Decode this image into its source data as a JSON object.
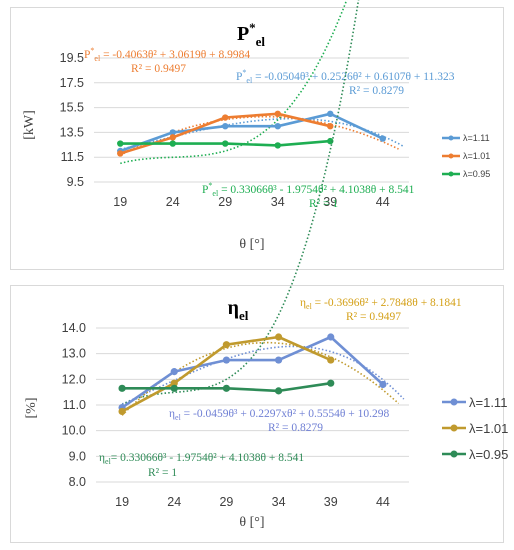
{
  "chart_data": [
    {
      "type": "line",
      "title": "P",
      "title_sup": "*",
      "title_sub": "el",
      "xlabel": "θ [°]",
      "ylabel": "[kW]",
      "categories": [
        "19",
        "24",
        "29",
        "34",
        "39",
        "44"
      ],
      "ylim": [
        9.5,
        19.5
      ],
      "yticks": [
        "19.5",
        "17.5",
        "15.5",
        "13.5",
        "11.5",
        "9.5"
      ],
      "grid": true,
      "legend_position": "right",
      "series": [
        {
          "name": "λ=1.11",
          "color": "#5B9BD5",
          "values": [
            12.0,
            13.5,
            14.0,
            14.0,
            15.0,
            13.0
          ]
        },
        {
          "name": "λ=1.01",
          "color": "#ED7D31",
          "values": [
            11.8,
            13.1,
            14.7,
            15.0,
            14.0,
            null
          ]
        },
        {
          "name": "λ=0.95",
          "color": "#1EAE52",
          "values": [
            12.6,
            12.6,
            12.6,
            12.45,
            12.8,
            null
          ]
        }
      ],
      "trendlines": [
        {
          "series": 0,
          "coef": [
            -0.0504,
            0.2526,
            0.6107,
            11.323
          ],
          "color": "#5B9BD5"
        },
        {
          "series": 1,
          "coef": [
            0,
            -0.4063,
            3.0619,
            8.9984
          ],
          "color": "#ED7D31"
        },
        {
          "series": 2,
          "coef": [
            0.33066,
            -1.9754,
            4.1038,
            8.541
          ],
          "color": "#1EAE52"
        }
      ],
      "equations": [
        {
          "pre": "P",
          "sup": "*",
          "sub": "el",
          "text": " = -0.4063θ² + 3.0619θ + 8.9984",
          "r2": "R² = 0.9497",
          "color": "#ED7D31"
        },
        {
          "pre": "P",
          "sup": "*",
          "sub": "el",
          "text": " = -0.0504θ³ + 0.2526θ² + 0.6107θ + 11.323",
          "r2": "R² = 0.8279",
          "color": "#5B9BD5"
        },
        {
          "pre": "P",
          "sup": "*",
          "sub": "el",
          "text": " = 0.33066θ³ - 1.9754θ² + 4.1038θ + 8.541",
          "r2": "R² = 1",
          "color": "#1EAE52"
        }
      ]
    },
    {
      "type": "line",
      "title": "η",
      "title_sub": "el",
      "xlabel": "θ [°]",
      "ylabel": "[%]",
      "categories": [
        "19",
        "24",
        "29",
        "34",
        "39",
        "44"
      ],
      "ylim": [
        8.0,
        14.0
      ],
      "yticks": [
        "14.0",
        "13.0",
        "12.0",
        "11.0",
        "10.0",
        "9.0",
        "8.0"
      ],
      "grid": true,
      "legend_position": "right",
      "series": [
        {
          "name": "λ=1.11",
          "color": "#6F8FD4",
          "values": [
            10.9,
            12.3,
            12.75,
            12.75,
            13.65,
            11.8
          ]
        },
        {
          "name": "λ=1.01",
          "color": "#C09A2E",
          "values": [
            10.75,
            11.85,
            13.35,
            13.65,
            12.75,
            null
          ]
        },
        {
          "name": "λ=0.95",
          "color": "#2E8B57",
          "values": [
            11.65,
            11.65,
            11.65,
            11.55,
            11.85,
            null
          ]
        }
      ],
      "trendlines": [
        {
          "series": 0,
          "coef": [
            -0.0459,
            0.2297,
            0.5554,
            10.298
          ],
          "color": "#6F8FD4"
        },
        {
          "series": 1,
          "coef": [
            0,
            -0.3696,
            2.7848,
            8.1841
          ],
          "color": "#C09A2E"
        },
        {
          "series": 2,
          "coef": [
            0.33066,
            -1.9754,
            4.1038,
            8.541
          ],
          "color": "#2E8B57"
        }
      ],
      "equations": [
        {
          "pre": "η",
          "sup": "",
          "sub": "el",
          "text": " = -0.3696θ² + 2.7848θ + 8.1841",
          "r2": "R² = 0.9497",
          "color": "#D4A017"
        },
        {
          "pre": "η",
          "sup": "",
          "sub": "el",
          "text": " = -0.0459θ³ + 0.2297xθ² + 0.5554θ + 10.298",
          "r2": "R² = 0.8279",
          "color": "#6F7FD4"
        },
        {
          "pre": "η",
          "sup": "",
          "sub": "el",
          "text": "= 0.33066θ³ - 1.9754θ² + 4.1038θ + 8.541",
          "r2": "R² = 1",
          "color": "#2E8B57"
        }
      ]
    }
  ]
}
